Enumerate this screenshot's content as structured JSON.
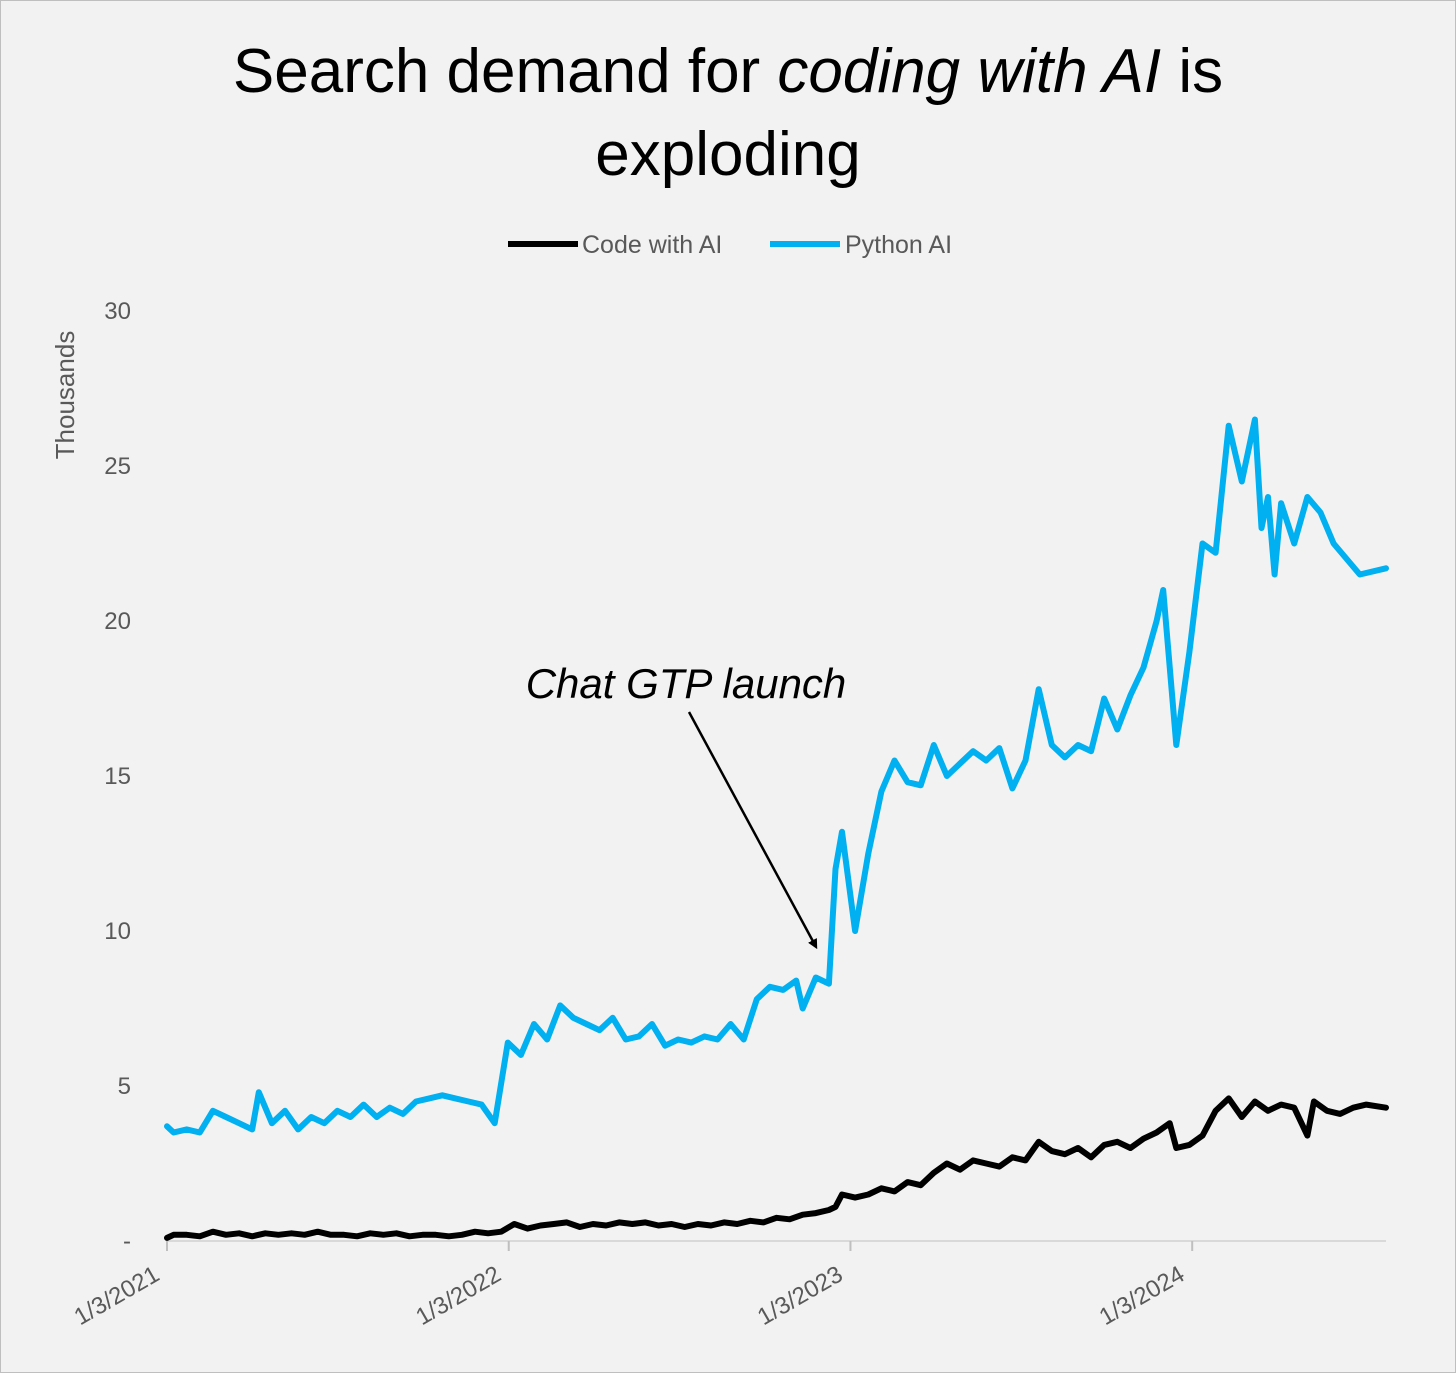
{
  "chart_data": {
    "type": "line",
    "title_parts": [
      "Search demand for ",
      "coding with AI",
      " is"
    ],
    "title_line2": "exploding",
    "ylabel": "Thousands",
    "ylim": [
      0,
      30
    ],
    "yticks": [
      {
        "value": 0,
        "label": "-"
      },
      {
        "value": 5,
        "label": "5"
      },
      {
        "value": 10,
        "label": "10"
      },
      {
        "value": 15,
        "label": "15"
      },
      {
        "value": 20,
        "label": "20"
      },
      {
        "value": 25,
        "label": "25"
      },
      {
        "value": 30,
        "label": "30"
      }
    ],
    "x_start": "2021-01-03",
    "x_end": "2024-07-28",
    "xticks": [
      {
        "date": "2021-01-03",
        "label": "1/3/2021"
      },
      {
        "date": "2022-01-03",
        "label": "1/3/2022"
      },
      {
        "date": "2023-01-03",
        "label": "1/3/2023"
      },
      {
        "date": "2024-01-03",
        "label": "1/3/2024"
      }
    ],
    "legend_position": "top-center",
    "annotation": {
      "text": "Chat GTP launch",
      "date": "2022-11-27",
      "value": 9.5
    },
    "series": [
      {
        "name": "Code with AI",
        "color": "#000000",
        "points": [
          [
            "2021-01-03",
            0.1
          ],
          [
            "2021-01-10",
            0.2
          ],
          [
            "2021-01-24",
            0.2
          ],
          [
            "2021-02-07",
            0.15
          ],
          [
            "2021-02-21",
            0.3
          ],
          [
            "2021-03-07",
            0.2
          ],
          [
            "2021-03-21",
            0.25
          ],
          [
            "2021-04-04",
            0.15
          ],
          [
            "2021-04-18",
            0.25
          ],
          [
            "2021-05-02",
            0.2
          ],
          [
            "2021-05-16",
            0.25
          ],
          [
            "2021-05-30",
            0.2
          ],
          [
            "2021-06-13",
            0.3
          ],
          [
            "2021-06-27",
            0.2
          ],
          [
            "2021-07-11",
            0.2
          ],
          [
            "2021-07-25",
            0.15
          ],
          [
            "2021-08-08",
            0.25
          ],
          [
            "2021-08-22",
            0.2
          ],
          [
            "2021-09-05",
            0.25
          ],
          [
            "2021-09-19",
            0.15
          ],
          [
            "2021-10-03",
            0.2
          ],
          [
            "2021-10-17",
            0.2
          ],
          [
            "2021-10-31",
            0.15
          ],
          [
            "2021-11-14",
            0.2
          ],
          [
            "2021-11-28",
            0.3
          ],
          [
            "2021-12-12",
            0.25
          ],
          [
            "2021-12-26",
            0.3
          ],
          [
            "2022-01-09",
            0.55
          ],
          [
            "2022-01-23",
            0.4
          ],
          [
            "2022-02-06",
            0.5
          ],
          [
            "2022-02-20",
            0.55
          ],
          [
            "2022-03-06",
            0.6
          ],
          [
            "2022-03-20",
            0.45
          ],
          [
            "2022-04-03",
            0.55
          ],
          [
            "2022-04-17",
            0.5
          ],
          [
            "2022-05-01",
            0.6
          ],
          [
            "2022-05-15",
            0.55
          ],
          [
            "2022-05-29",
            0.6
          ],
          [
            "2022-06-12",
            0.5
          ],
          [
            "2022-06-26",
            0.55
          ],
          [
            "2022-07-10",
            0.45
          ],
          [
            "2022-07-24",
            0.55
          ],
          [
            "2022-08-07",
            0.5
          ],
          [
            "2022-08-21",
            0.6
          ],
          [
            "2022-09-04",
            0.55
          ],
          [
            "2022-09-18",
            0.65
          ],
          [
            "2022-10-02",
            0.6
          ],
          [
            "2022-10-16",
            0.75
          ],
          [
            "2022-10-30",
            0.7
          ],
          [
            "2022-11-13",
            0.85
          ],
          [
            "2022-11-27",
            0.9
          ],
          [
            "2022-12-11",
            1.0
          ],
          [
            "2022-12-18",
            1.1
          ],
          [
            "2022-12-25",
            1.5
          ],
          [
            "2023-01-08",
            1.4
          ],
          [
            "2023-01-22",
            1.5
          ],
          [
            "2023-02-05",
            1.7
          ],
          [
            "2023-02-19",
            1.6
          ],
          [
            "2023-03-05",
            1.9
          ],
          [
            "2023-03-19",
            1.8
          ],
          [
            "2023-04-02",
            2.2
          ],
          [
            "2023-04-16",
            2.5
          ],
          [
            "2023-04-30",
            2.3
          ],
          [
            "2023-05-14",
            2.6
          ],
          [
            "2023-05-28",
            2.5
          ],
          [
            "2023-06-11",
            2.4
          ],
          [
            "2023-06-25",
            2.7
          ],
          [
            "2023-07-09",
            2.6
          ],
          [
            "2023-07-23",
            3.2
          ],
          [
            "2023-08-06",
            2.9
          ],
          [
            "2023-08-20",
            2.8
          ],
          [
            "2023-09-03",
            3.0
          ],
          [
            "2023-09-17",
            2.7
          ],
          [
            "2023-10-01",
            3.1
          ],
          [
            "2023-10-15",
            3.2
          ],
          [
            "2023-10-29",
            3.0
          ],
          [
            "2023-11-12",
            3.3
          ],
          [
            "2023-11-26",
            3.5
          ],
          [
            "2023-12-10",
            3.8
          ],
          [
            "2023-12-17",
            3.0
          ],
          [
            "2023-12-31",
            3.1
          ],
          [
            "2024-01-14",
            3.4
          ],
          [
            "2024-01-28",
            4.2
          ],
          [
            "2024-02-11",
            4.6
          ],
          [
            "2024-02-25",
            4.0
          ],
          [
            "2024-03-10",
            4.5
          ],
          [
            "2024-03-24",
            4.2
          ],
          [
            "2024-04-07",
            4.4
          ],
          [
            "2024-04-21",
            4.3
          ],
          [
            "2024-05-05",
            3.4
          ],
          [
            "2024-05-12",
            4.5
          ],
          [
            "2024-05-26",
            4.2
          ],
          [
            "2024-06-09",
            4.1
          ],
          [
            "2024-06-23",
            4.3
          ],
          [
            "2024-07-07",
            4.4
          ],
          [
            "2024-07-28",
            4.3
          ]
        ]
      },
      {
        "name": "Python AI",
        "color": "#00b0f0",
        "points": [
          [
            "2021-01-03",
            3.7
          ],
          [
            "2021-01-10",
            3.5
          ],
          [
            "2021-01-24",
            3.6
          ],
          [
            "2021-02-07",
            3.5
          ],
          [
            "2021-02-21",
            4.2
          ],
          [
            "2021-03-07",
            4.0
          ],
          [
            "2021-03-21",
            3.8
          ],
          [
            "2021-04-04",
            3.6
          ],
          [
            "2021-04-11",
            4.8
          ],
          [
            "2021-04-25",
            3.8
          ],
          [
            "2021-05-09",
            4.2
          ],
          [
            "2021-05-23",
            3.6
          ],
          [
            "2021-06-06",
            4.0
          ],
          [
            "2021-06-20",
            3.8
          ],
          [
            "2021-07-04",
            4.2
          ],
          [
            "2021-07-18",
            4.0
          ],
          [
            "2021-08-01",
            4.4
          ],
          [
            "2021-08-15",
            4.0
          ],
          [
            "2021-08-29",
            4.3
          ],
          [
            "2021-09-12",
            4.1
          ],
          [
            "2021-09-26",
            4.5
          ],
          [
            "2021-10-10",
            4.6
          ],
          [
            "2021-10-24",
            4.7
          ],
          [
            "2021-11-07",
            4.6
          ],
          [
            "2021-11-21",
            4.5
          ],
          [
            "2021-12-05",
            4.4
          ],
          [
            "2021-12-19",
            3.8
          ],
          [
            "2022-01-02",
            6.4
          ],
          [
            "2022-01-16",
            6.0
          ],
          [
            "2022-01-30",
            7.0
          ],
          [
            "2022-02-13",
            6.5
          ],
          [
            "2022-02-27",
            7.6
          ],
          [
            "2022-03-13",
            7.2
          ],
          [
            "2022-03-27",
            7.0
          ],
          [
            "2022-04-10",
            6.8
          ],
          [
            "2022-04-24",
            7.2
          ],
          [
            "2022-05-08",
            6.5
          ],
          [
            "2022-05-22",
            6.6
          ],
          [
            "2022-06-05",
            7.0
          ],
          [
            "2022-06-19",
            6.3
          ],
          [
            "2022-07-03",
            6.5
          ],
          [
            "2022-07-17",
            6.4
          ],
          [
            "2022-07-31",
            6.6
          ],
          [
            "2022-08-14",
            6.5
          ],
          [
            "2022-08-28",
            7.0
          ],
          [
            "2022-09-11",
            6.5
          ],
          [
            "2022-09-25",
            7.8
          ],
          [
            "2022-10-09",
            8.2
          ],
          [
            "2022-10-23",
            8.1
          ],
          [
            "2022-11-06",
            8.4
          ],
          [
            "2022-11-13",
            7.5
          ],
          [
            "2022-11-27",
            8.5
          ],
          [
            "2022-12-11",
            8.3
          ],
          [
            "2022-12-18",
            12.0
          ],
          [
            "2022-12-25",
            13.2
          ],
          [
            "2023-01-08",
            10.0
          ],
          [
            "2023-01-22",
            12.5
          ],
          [
            "2023-02-05",
            14.5
          ],
          [
            "2023-02-19",
            15.5
          ],
          [
            "2023-03-05",
            14.8
          ],
          [
            "2023-03-19",
            14.7
          ],
          [
            "2023-04-02",
            16.0
          ],
          [
            "2023-04-16",
            15.0
          ],
          [
            "2023-04-30",
            15.4
          ],
          [
            "2023-05-14",
            15.8
          ],
          [
            "2023-05-28",
            15.5
          ],
          [
            "2023-06-11",
            15.9
          ],
          [
            "2023-06-25",
            14.6
          ],
          [
            "2023-07-09",
            15.5
          ],
          [
            "2023-07-23",
            17.8
          ],
          [
            "2023-08-06",
            16.0
          ],
          [
            "2023-08-20",
            15.6
          ],
          [
            "2023-09-03",
            16.0
          ],
          [
            "2023-09-17",
            15.8
          ],
          [
            "2023-10-01",
            17.5
          ],
          [
            "2023-10-15",
            16.5
          ],
          [
            "2023-10-29",
            17.6
          ],
          [
            "2023-11-12",
            18.5
          ],
          [
            "2023-11-26",
            20.0
          ],
          [
            "2023-12-03",
            21.0
          ],
          [
            "2023-12-17",
            16.0
          ],
          [
            "2023-12-31",
            19.0
          ],
          [
            "2024-01-14",
            22.5
          ],
          [
            "2024-01-28",
            22.2
          ],
          [
            "2024-02-11",
            26.3
          ],
          [
            "2024-02-25",
            24.5
          ],
          [
            "2024-03-10",
            26.5
          ],
          [
            "2024-03-17",
            23.0
          ],
          [
            "2024-03-24",
            24.0
          ],
          [
            "2024-03-31",
            21.5
          ],
          [
            "2024-04-07",
            23.8
          ],
          [
            "2024-04-21",
            22.5
          ],
          [
            "2024-05-05",
            24.0
          ],
          [
            "2024-05-19",
            23.5
          ],
          [
            "2024-06-02",
            22.5
          ],
          [
            "2024-06-16",
            22.0
          ],
          [
            "2024-06-30",
            21.5
          ],
          [
            "2024-07-28",
            21.7
          ]
        ]
      }
    ]
  }
}
